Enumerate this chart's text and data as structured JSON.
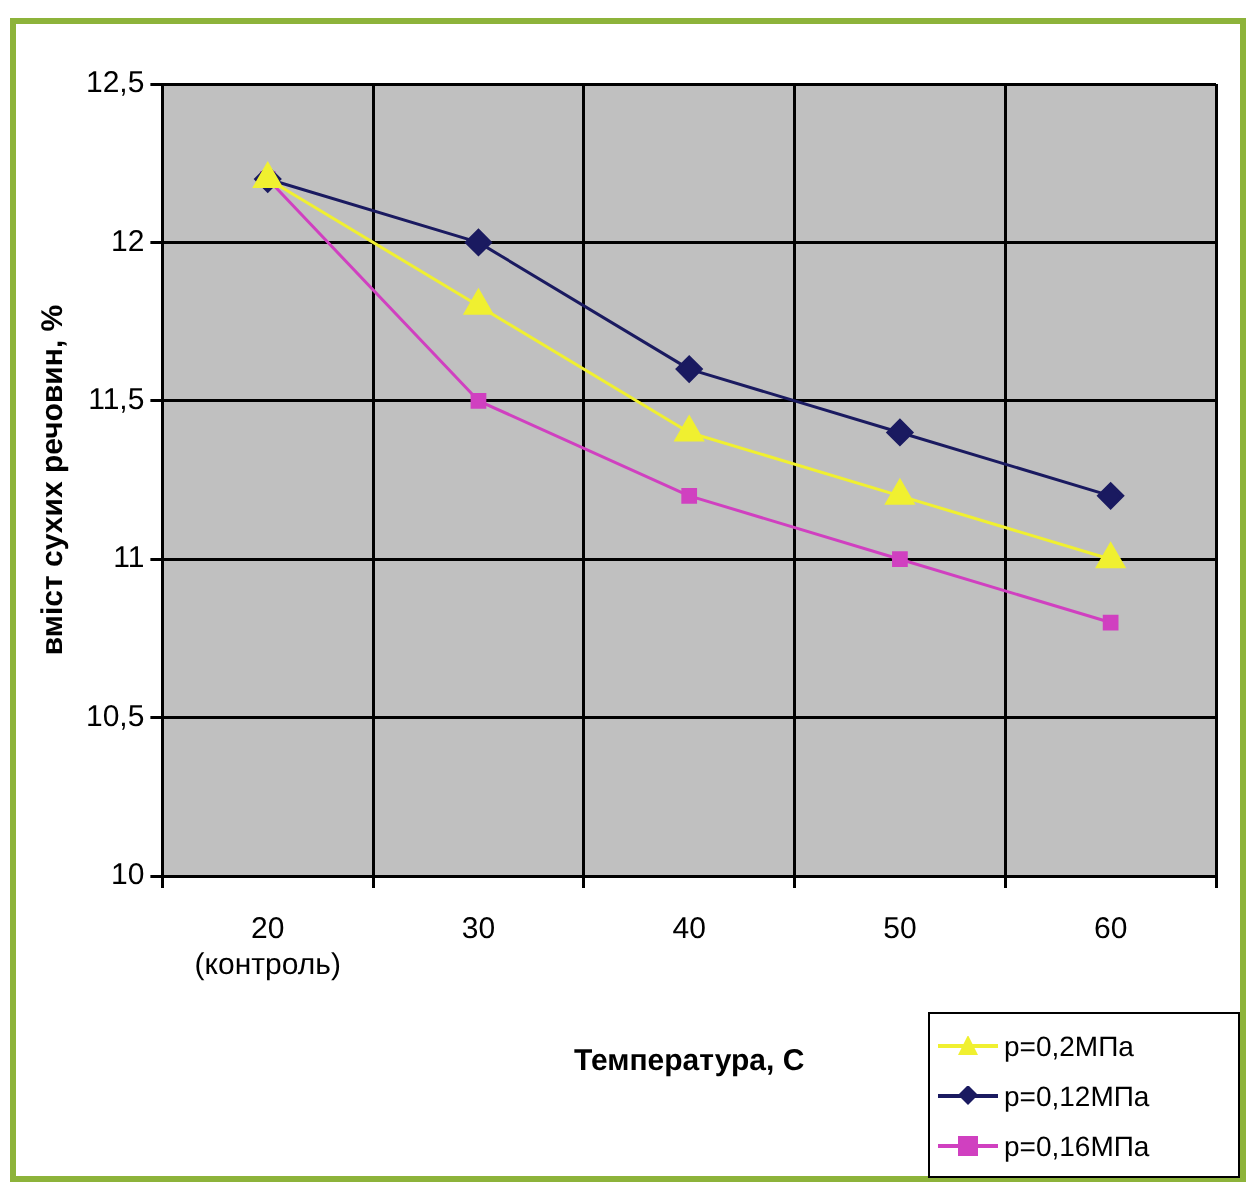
{
  "chart_data": {
    "type": "line",
    "xlabel": "Температура, С",
    "ylabel": "вміст сухих речовин, %",
    "categories": [
      "20\n(контроль)",
      "30",
      "40",
      "50",
      "60"
    ],
    "series": [
      {
        "name": "p=0,2МПа",
        "color": "#f0f030",
        "marker": "triangle",
        "values": [
          12.2,
          11.8,
          11.4,
          11.2,
          11.0
        ]
      },
      {
        "name": "p=0,12МПа",
        "color": "#1a1a60",
        "marker": "diamond",
        "values": [
          12.2,
          12.0,
          11.6,
          11.4,
          11.2
        ]
      },
      {
        "name": "p=0,16МПа",
        "color": "#d040c0",
        "marker": "square",
        "values": [
          12.2,
          11.5,
          11.2,
          11.0,
          10.8
        ]
      }
    ],
    "ylim": [
      10,
      12.5
    ],
    "yticks": [
      10,
      {
        "value": 10.5,
        "label": "10,5"
      },
      11,
      {
        "value": 11.5,
        "label": "11,5"
      },
      12,
      {
        "value": 12.5,
        "label": "12,5"
      }
    ],
    "grid": true,
    "legend": "bottom right"
  }
}
